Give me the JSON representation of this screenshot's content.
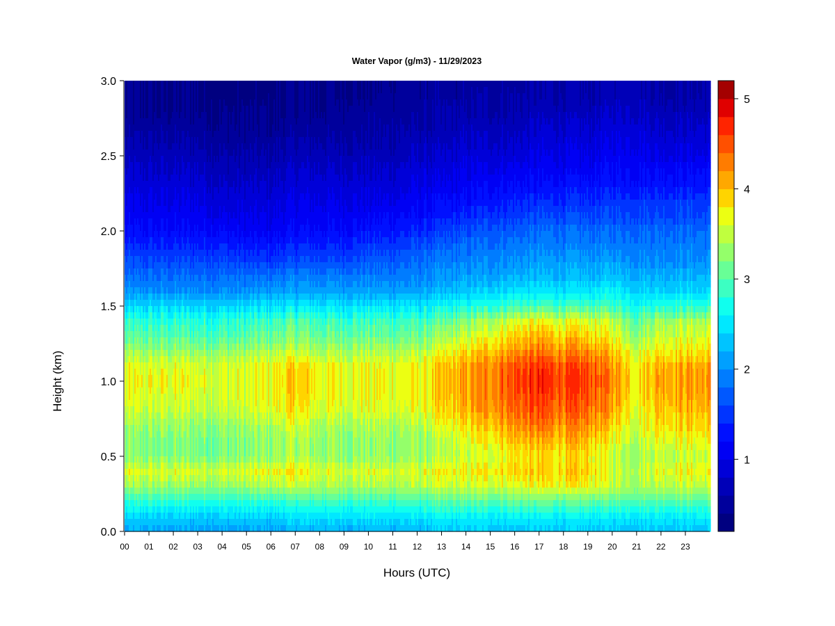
{
  "chart_data": {
    "type": "heatmap",
    "title": "Water Vapor (g/m3) - 11/29/2023",
    "xlabel": "Hours (UTC)",
    "ylabel": "Height (km)",
    "xlim": [
      0,
      24
    ],
    "ylim": [
      0,
      3.0
    ],
    "x_tick_labels": [
      "00",
      "01",
      "02",
      "03",
      "04",
      "05",
      "06",
      "07",
      "08",
      "09",
      "10",
      "11",
      "12",
      "13",
      "14",
      "15",
      "16",
      "17",
      "18",
      "19",
      "20",
      "21",
      "22",
      "23"
    ],
    "x_ticks": [
      0,
      1,
      2,
      3,
      4,
      5,
      6,
      7,
      8,
      9,
      10,
      11,
      12,
      13,
      14,
      15,
      16,
      17,
      18,
      19,
      20,
      21,
      22,
      23
    ],
    "y_ticks": [
      0.0,
      0.5,
      1.0,
      1.5,
      2.0,
      2.5,
      3.0
    ],
    "y_tick_labels": [
      "0.0",
      "0.5",
      "1.0",
      "1.5",
      "2.0",
      "2.5",
      "3.0"
    ],
    "colorbar": {
      "range": [
        0.2,
        5.2
      ],
      "levels": 25,
      "ticks": [
        1,
        2,
        3,
        4,
        5
      ],
      "tick_labels": [
        "1",
        "2",
        "3",
        "4",
        "5"
      ],
      "colors": [
        "#000080",
        "#00009c",
        "#0000b8",
        "#0000d8",
        "#0000f4",
        "#0010ff",
        "#0034ff",
        "#0058ff",
        "#007cff",
        "#00a0ff",
        "#00c4ff",
        "#00e8ff",
        "#10ffee",
        "#3cffc2",
        "#68ff96",
        "#94ff6a",
        "#c0ff3e",
        "#ecff12",
        "#ffd400",
        "#ffa800",
        "#ff7c00",
        "#ff5000",
        "#ff2400",
        "#e00000",
        "#a40000"
      ]
    },
    "grid": "row = height level (0.0 to 3.0 km, step 0.1), value = water vapor density (g/m3) at hours 0..23",
    "heights_km": [
      0.0,
      0.1,
      0.2,
      0.3,
      0.4,
      0.5,
      0.6,
      0.7,
      0.8,
      0.9,
      1.0,
      1.1,
      1.2,
      1.3,
      1.4,
      1.5,
      1.6,
      1.7,
      1.8,
      1.9,
      2.0,
      2.1,
      2.2,
      2.3,
      2.4,
      2.5,
      2.6,
      2.7,
      2.8,
      2.9,
      3.0
    ],
    "hours": [
      0,
      1,
      2,
      3,
      4,
      5,
      6,
      7,
      8,
      9,
      10,
      11,
      12,
      13,
      14,
      15,
      16,
      17,
      18,
      19,
      20,
      21,
      22,
      23
    ],
    "values": [
      [
        2.1,
        2.1,
        2.1,
        2.1,
        2.1,
        2.1,
        2.1,
        2.2,
        2.2,
        2.2,
        2.2,
        2.2,
        2.2,
        2.3,
        2.3,
        2.3,
        2.3,
        2.3,
        2.3,
        2.3,
        2.3,
        2.3,
        2.3,
        2.3
      ],
      [
        2.4,
        2.4,
        2.4,
        2.4,
        2.4,
        2.4,
        2.4,
        2.5,
        2.5,
        2.5,
        2.5,
        2.5,
        2.5,
        2.6,
        2.6,
        2.6,
        2.6,
        2.6,
        2.6,
        2.6,
        2.6,
        2.6,
        2.6,
        2.6
      ],
      [
        2.8,
        2.8,
        2.8,
        2.8,
        2.8,
        2.8,
        2.8,
        2.9,
        2.9,
        2.9,
        2.9,
        2.9,
        2.9,
        3.0,
        3.0,
        3.0,
        3.1,
        3.1,
        3.1,
        3.1,
        3.0,
        3.0,
        3.0,
        3.0
      ],
      [
        3.3,
        3.3,
        3.3,
        3.3,
        3.3,
        3.3,
        3.4,
        3.5,
        3.4,
        3.4,
        3.4,
        3.4,
        3.4,
        3.5,
        3.5,
        3.6,
        3.6,
        3.7,
        3.7,
        3.7,
        3.5,
        3.4,
        3.5,
        3.5
      ],
      [
        3.6,
        3.6,
        3.6,
        3.6,
        3.6,
        3.6,
        3.7,
        3.8,
        3.6,
        3.6,
        3.6,
        3.6,
        3.6,
        3.7,
        3.7,
        3.8,
        3.9,
        3.9,
        3.9,
        3.9,
        3.6,
        3.5,
        3.7,
        3.7
      ],
      [
        3.2,
        3.2,
        3.2,
        3.2,
        3.2,
        3.2,
        3.3,
        3.4,
        3.3,
        3.3,
        3.3,
        3.3,
        3.3,
        3.4,
        3.5,
        3.6,
        3.8,
        3.8,
        3.8,
        3.8,
        3.5,
        3.4,
        3.5,
        3.5
      ],
      [
        3.2,
        3.2,
        3.2,
        3.2,
        3.2,
        3.2,
        3.3,
        3.4,
        3.3,
        3.3,
        3.3,
        3.3,
        3.3,
        3.4,
        3.6,
        3.8,
        4.0,
        4.0,
        4.0,
        4.0,
        3.7,
        3.5,
        3.7,
        3.7
      ],
      [
        3.3,
        3.3,
        3.3,
        3.3,
        3.3,
        3.3,
        3.4,
        3.6,
        3.4,
        3.4,
        3.4,
        3.4,
        3.4,
        3.6,
        3.8,
        4.0,
        4.2,
        4.3,
        4.2,
        4.2,
        3.9,
        3.6,
        3.9,
        3.9
      ],
      [
        3.5,
        3.5,
        3.5,
        3.5,
        3.5,
        3.5,
        3.6,
        3.8,
        3.6,
        3.6,
        3.6,
        3.6,
        3.6,
        3.8,
        4.0,
        4.2,
        4.4,
        4.5,
        4.4,
        4.4,
        4.1,
        3.7,
        4.0,
        4.0
      ],
      [
        3.6,
        3.6,
        3.6,
        3.6,
        3.6,
        3.6,
        3.7,
        3.9,
        3.7,
        3.7,
        3.7,
        3.7,
        3.7,
        3.9,
        4.1,
        4.3,
        4.5,
        4.6,
        4.5,
        4.5,
        4.2,
        3.8,
        4.1,
        4.1
      ],
      [
        3.7,
        3.7,
        3.7,
        3.7,
        3.6,
        3.6,
        3.7,
        4.0,
        3.7,
        3.7,
        3.7,
        3.7,
        3.7,
        3.9,
        4.1,
        4.3,
        4.6,
        4.7,
        4.6,
        4.6,
        4.3,
        3.8,
        4.2,
        4.2
      ],
      [
        3.6,
        3.6,
        3.6,
        3.6,
        3.6,
        3.6,
        3.7,
        3.9,
        3.7,
        3.7,
        3.7,
        3.7,
        3.7,
        3.9,
        4.1,
        4.3,
        4.5,
        4.6,
        4.5,
        4.5,
        4.2,
        3.8,
        4.1,
        4.1
      ],
      [
        3.3,
        3.3,
        3.3,
        3.3,
        3.3,
        3.3,
        3.4,
        3.5,
        3.4,
        3.4,
        3.4,
        3.4,
        3.4,
        3.6,
        3.8,
        4.0,
        4.2,
        4.3,
        4.2,
        4.2,
        4.0,
        3.6,
        3.8,
        3.8
      ],
      [
        3.0,
        3.0,
        3.0,
        3.0,
        3.0,
        3.0,
        3.1,
        3.2,
        3.1,
        3.1,
        3.1,
        3.1,
        3.1,
        3.3,
        3.5,
        3.7,
        3.9,
        4.0,
        3.9,
        3.9,
        3.7,
        3.3,
        3.6,
        3.6
      ],
      [
        2.8,
        2.8,
        2.8,
        2.8,
        2.8,
        2.8,
        2.9,
        3.0,
        2.9,
        2.9,
        2.9,
        2.9,
        2.9,
        3.0,
        3.2,
        3.4,
        3.6,
        3.7,
        3.6,
        3.6,
        3.5,
        3.1,
        3.4,
        3.4
      ],
      [
        2.4,
        2.4,
        2.4,
        2.4,
        2.4,
        2.4,
        2.5,
        2.5,
        2.5,
        2.5,
        2.5,
        2.5,
        2.5,
        2.6,
        2.7,
        2.8,
        2.9,
        2.9,
        2.9,
        2.9,
        2.9,
        2.7,
        2.8,
        2.8
      ],
      [
        2.0,
        2.0,
        2.0,
        2.0,
        2.0,
        2.0,
        2.1,
        2.1,
        2.1,
        2.1,
        2.1,
        2.1,
        2.1,
        2.2,
        2.3,
        2.4,
        2.5,
        2.5,
        2.5,
        2.5,
        2.6,
        2.4,
        2.4,
        2.4
      ],
      [
        1.8,
        1.8,
        1.8,
        1.8,
        1.8,
        1.8,
        1.8,
        1.9,
        1.9,
        1.9,
        1.9,
        1.9,
        1.9,
        2.0,
        2.1,
        2.1,
        2.2,
        2.2,
        2.2,
        2.2,
        2.3,
        2.2,
        2.2,
        2.2
      ],
      [
        1.6,
        1.6,
        1.6,
        1.6,
        1.6,
        1.5,
        1.5,
        1.6,
        1.6,
        1.6,
        1.7,
        1.7,
        1.8,
        1.9,
        1.9,
        2.0,
        2.0,
        2.1,
        2.1,
        2.1,
        2.1,
        2.0,
        2.0,
        2.0
      ],
      [
        1.4,
        1.4,
        1.4,
        1.4,
        1.4,
        1.3,
        1.3,
        1.4,
        1.4,
        1.4,
        1.5,
        1.5,
        1.6,
        1.7,
        1.8,
        1.8,
        1.9,
        1.9,
        1.9,
        1.9,
        1.9,
        1.9,
        1.9,
        1.9
      ],
      [
        1.2,
        1.2,
        1.2,
        1.2,
        1.2,
        1.1,
        1.1,
        1.2,
        1.2,
        1.2,
        1.3,
        1.3,
        1.4,
        1.5,
        1.6,
        1.7,
        1.7,
        1.8,
        1.8,
        1.8,
        1.8,
        1.8,
        1.8,
        1.8
      ],
      [
        1.1,
        1.1,
        1.1,
        1.1,
        1.0,
        1.0,
        1.0,
        1.1,
        1.1,
        1.1,
        1.1,
        1.2,
        1.2,
        1.3,
        1.4,
        1.5,
        1.5,
        1.6,
        1.6,
        1.6,
        1.6,
        1.6,
        1.6,
        1.6
      ],
      [
        1.0,
        1.0,
        1.0,
        1.0,
        0.9,
        0.9,
        0.9,
        1.0,
        1.0,
        1.0,
        1.0,
        1.0,
        1.1,
        1.2,
        1.2,
        1.3,
        1.4,
        1.4,
        1.4,
        1.4,
        1.5,
        1.5,
        1.5,
        1.5
      ],
      [
        0.9,
        0.9,
        0.9,
        0.9,
        0.8,
        0.8,
        0.8,
        0.9,
        0.9,
        0.9,
        0.9,
        0.9,
        1.0,
        1.0,
        1.1,
        1.2,
        1.2,
        1.2,
        1.3,
        1.3,
        1.3,
        1.3,
        1.3,
        1.3
      ],
      [
        0.8,
        0.8,
        0.8,
        0.8,
        0.7,
        0.7,
        0.7,
        0.8,
        0.8,
        0.8,
        0.8,
        0.8,
        0.9,
        0.9,
        1.0,
        1.0,
        1.1,
        1.1,
        1.1,
        1.1,
        1.2,
        1.2,
        1.2,
        1.2
      ],
      [
        0.7,
        0.7,
        0.7,
        0.7,
        0.6,
        0.6,
        0.6,
        0.7,
        0.7,
        0.7,
        0.7,
        0.7,
        0.8,
        0.8,
        0.9,
        0.9,
        0.9,
        1.0,
        1.0,
        1.0,
        1.1,
        1.1,
        1.0,
        1.0
      ],
      [
        0.6,
        0.6,
        0.6,
        0.6,
        0.5,
        0.5,
        0.5,
        0.6,
        0.6,
        0.6,
        0.6,
        0.6,
        0.7,
        0.7,
        0.8,
        0.8,
        0.8,
        0.9,
        0.9,
        0.9,
        1.0,
        1.0,
        0.9,
        0.9
      ],
      [
        0.5,
        0.5,
        0.5,
        0.5,
        0.4,
        0.4,
        0.4,
        0.5,
        0.5,
        0.5,
        0.5,
        0.6,
        0.6,
        0.6,
        0.7,
        0.7,
        0.7,
        0.8,
        0.8,
        0.8,
        0.9,
        0.9,
        0.8,
        0.8
      ],
      [
        0.4,
        0.4,
        0.4,
        0.4,
        0.4,
        0.4,
        0.4,
        0.4,
        0.4,
        0.5,
        0.5,
        0.5,
        0.5,
        0.6,
        0.6,
        0.6,
        0.6,
        0.7,
        0.7,
        0.7,
        0.8,
        0.8,
        0.7,
        0.7
      ],
      [
        0.4,
        0.4,
        0.4,
        0.4,
        0.3,
        0.3,
        0.3,
        0.4,
        0.4,
        0.4,
        0.4,
        0.5,
        0.5,
        0.5,
        0.5,
        0.6,
        0.6,
        0.6,
        0.6,
        0.6,
        0.7,
        0.7,
        0.6,
        0.6
      ],
      [
        0.4,
        0.4,
        0.4,
        0.4,
        0.3,
        0.3,
        0.3,
        0.4,
        0.4,
        0.4,
        0.4,
        0.4,
        0.5,
        0.5,
        0.5,
        0.5,
        0.5,
        0.6,
        0.6,
        0.6,
        0.7,
        0.7,
        0.6,
        0.6
      ]
    ]
  }
}
